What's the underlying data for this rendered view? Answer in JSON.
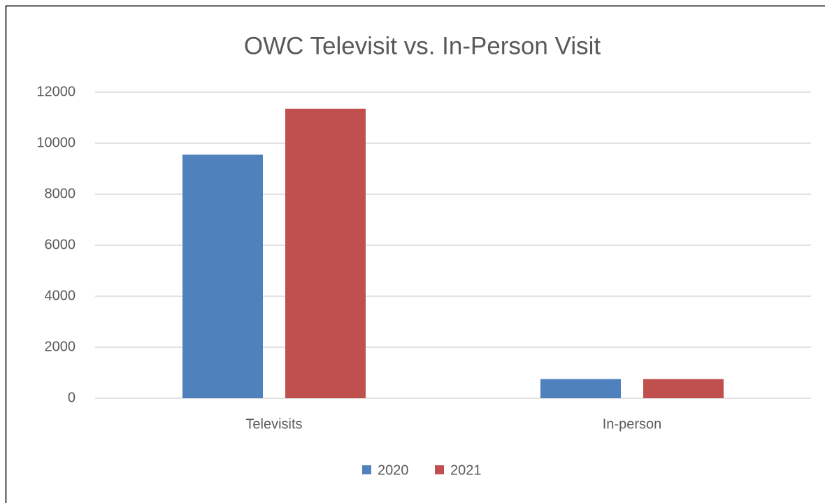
{
  "chart_data": {
    "type": "bar",
    "title": "OWC Televisit vs. In-Person Visit",
    "categories": [
      "Televisits",
      "In-person"
    ],
    "series": [
      {
        "name": "2020",
        "color": "#4f81bd",
        "values": [
          9550,
          750
        ]
      },
      {
        "name": "2021",
        "color": "#c0504d",
        "values": [
          11350,
          750
        ]
      }
    ],
    "ylim": [
      0,
      12000
    ],
    "yticks": [
      0,
      2000,
      4000,
      6000,
      8000,
      10000,
      12000
    ],
    "grid": true,
    "legend": "bottom"
  }
}
